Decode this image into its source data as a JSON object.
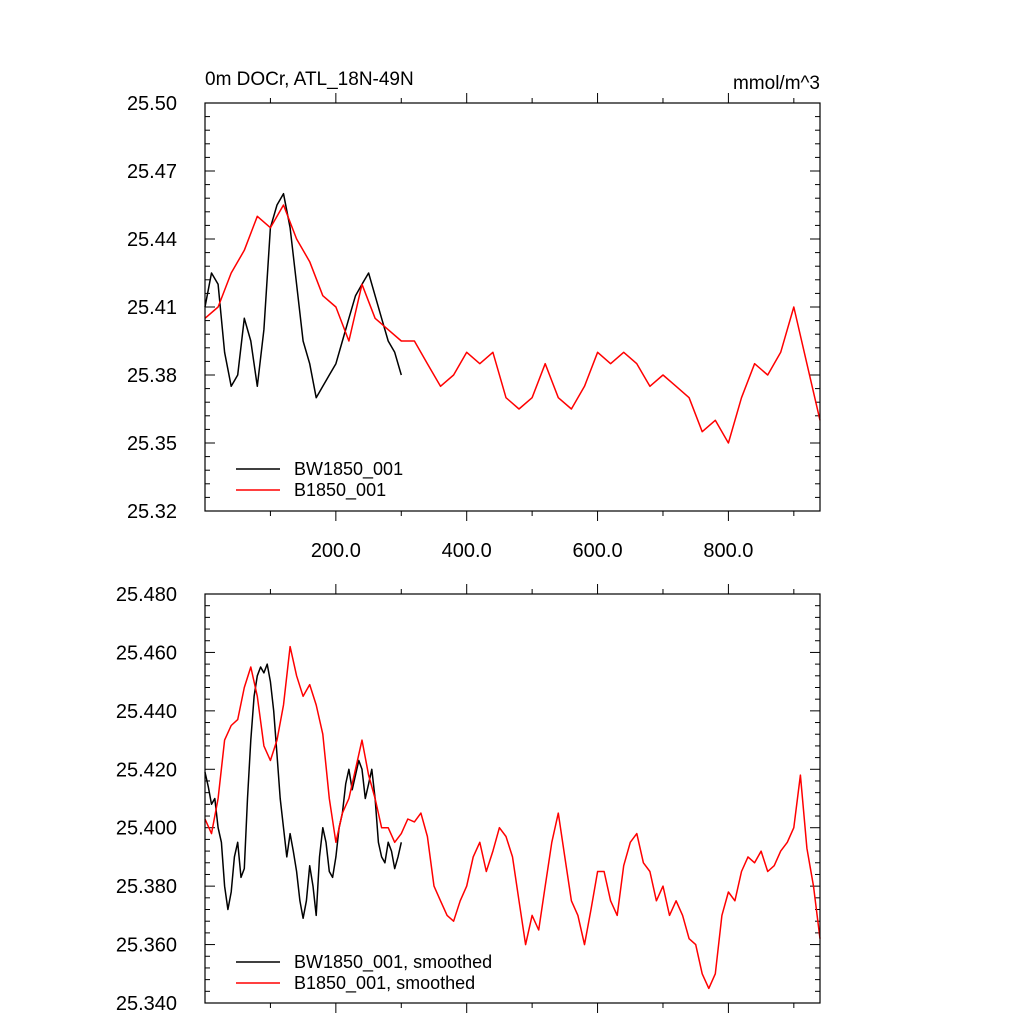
{
  "figure": {
    "background": "#ffffff"
  },
  "chart_data": [
    {
      "type": "line",
      "title": "0m DOCr, ATL_18N-49N",
      "units": "mmol/m^3",
      "xlim": [
        0,
        940
      ],
      "ylim": [
        25.32,
        25.5
      ],
      "x_tick_labels": [
        "200.0",
        "400.0",
        "600.0",
        "800.0"
      ],
      "x_ticks": [
        200,
        400,
        600,
        800
      ],
      "y_tick_labels": [
        "25.32",
        "25.35",
        "25.38",
        "25.41",
        "25.44",
        "25.47",
        "25.50"
      ],
      "y_ticks": [
        25.32,
        25.35,
        25.38,
        25.41,
        25.44,
        25.47,
        25.5
      ],
      "legend_position": "bottom-left",
      "series": [
        {
          "name": "BW1850_001",
          "color": "#000000",
          "x": [
            0,
            10,
            20,
            30,
            40,
            50,
            60,
            70,
            80,
            90,
            100,
            110,
            120,
            130,
            140,
            150,
            160,
            170,
            180,
            190,
            200,
            210,
            220,
            230,
            240,
            250,
            260,
            270,
            280,
            290,
            300
          ],
          "y": [
            25.41,
            25.425,
            25.42,
            25.39,
            25.375,
            25.38,
            25.405,
            25.395,
            25.375,
            25.4,
            25.445,
            25.455,
            25.46,
            25.445,
            25.42,
            25.395,
            25.385,
            25.37,
            25.375,
            25.38,
            25.385,
            25.395,
            25.405,
            25.415,
            25.42,
            25.425,
            25.415,
            25.405,
            25.395,
            25.39,
            25.38
          ]
        },
        {
          "name": "B1850_001",
          "color": "#ff0000",
          "x": [
            0,
            20,
            40,
            60,
            80,
            100,
            120,
            140,
            160,
            180,
            200,
            220,
            240,
            260,
            280,
            300,
            320,
            340,
            360,
            380,
            400,
            420,
            440,
            460,
            480,
            500,
            520,
            540,
            560,
            580,
            600,
            620,
            640,
            660,
            680,
            700,
            720,
            740,
            760,
            780,
            800,
            820,
            840,
            860,
            880,
            900,
            920,
            940
          ],
          "y": [
            25.405,
            25.41,
            25.425,
            25.435,
            25.45,
            25.445,
            25.455,
            25.44,
            25.43,
            25.415,
            25.41,
            25.395,
            25.42,
            25.405,
            25.4,
            25.395,
            25.395,
            25.385,
            25.375,
            25.38,
            25.39,
            25.385,
            25.39,
            25.37,
            25.365,
            25.37,
            25.385,
            25.37,
            25.365,
            25.375,
            25.39,
            25.385,
            25.39,
            25.385,
            25.375,
            25.38,
            25.375,
            25.37,
            25.355,
            25.36,
            25.35,
            25.37,
            25.385,
            25.38,
            25.39,
            25.41,
            25.385,
            25.36
          ]
        }
      ]
    },
    {
      "type": "line",
      "xlim": [
        0,
        940
      ],
      "ylim": [
        25.34,
        25.48
      ],
      "y_tick_labels": [
        "25.340",
        "25.360",
        "25.380",
        "25.400",
        "25.420",
        "25.440",
        "25.460",
        "25.480"
      ],
      "y_ticks": [
        25.34,
        25.36,
        25.38,
        25.4,
        25.42,
        25.44,
        25.46,
        25.48
      ],
      "x_ticks": [
        200,
        400,
        600,
        800
      ],
      "legend_position": "bottom-left",
      "series": [
        {
          "name": "BW1850_001, smoothed",
          "color": "#000000",
          "x": [
            0,
            5,
            10,
            15,
            20,
            25,
            30,
            35,
            40,
            45,
            50,
            55,
            60,
            65,
            70,
            75,
            80,
            85,
            90,
            95,
            100,
            105,
            110,
            115,
            120,
            125,
            130,
            135,
            140,
            145,
            150,
            155,
            160,
            165,
            170,
            175,
            180,
            185,
            190,
            195,
            200,
            205,
            210,
            215,
            220,
            225,
            230,
            235,
            240,
            245,
            250,
            255,
            260,
            265,
            270,
            275,
            280,
            285,
            290,
            295,
            300
          ],
          "y": [
            25.419,
            25.414,
            25.408,
            25.41,
            25.4,
            25.395,
            25.38,
            25.372,
            25.378,
            25.39,
            25.395,
            25.383,
            25.386,
            25.41,
            25.43,
            25.445,
            25.452,
            25.455,
            25.453,
            25.456,
            25.45,
            25.44,
            25.425,
            25.41,
            25.4,
            25.39,
            25.398,
            25.392,
            25.385,
            25.375,
            25.369,
            25.375,
            25.387,
            25.38,
            25.37,
            25.39,
            25.4,
            25.395,
            25.385,
            25.383,
            25.39,
            25.4,
            25.405,
            25.415,
            25.42,
            25.413,
            25.418,
            25.423,
            25.42,
            25.41,
            25.415,
            25.42,
            25.41,
            25.395,
            25.39,
            25.388,
            25.395,
            25.392,
            25.386,
            25.39,
            25.395
          ]
        },
        {
          "name": "B1850_001, smoothed",
          "color": "#ff0000",
          "x": [
            0,
            10,
            20,
            30,
            40,
            50,
            60,
            70,
            80,
            90,
            100,
            110,
            120,
            130,
            140,
            150,
            160,
            170,
            180,
            190,
            200,
            210,
            220,
            230,
            240,
            250,
            260,
            270,
            280,
            290,
            300,
            310,
            320,
            330,
            340,
            350,
            360,
            370,
            380,
            390,
            400,
            410,
            420,
            430,
            440,
            450,
            460,
            470,
            480,
            490,
            500,
            510,
            520,
            530,
            540,
            550,
            560,
            570,
            580,
            590,
            600,
            610,
            620,
            630,
            640,
            650,
            660,
            670,
            680,
            690,
            700,
            710,
            720,
            730,
            740,
            750,
            760,
            770,
            780,
            790,
            800,
            810,
            820,
            830,
            840,
            850,
            860,
            870,
            880,
            890,
            900,
            910,
            920,
            930,
            940
          ],
          "y": [
            25.403,
            25.398,
            25.41,
            25.43,
            25.435,
            25.437,
            25.448,
            25.455,
            25.445,
            25.428,
            25.423,
            25.43,
            25.442,
            25.462,
            25.452,
            25.445,
            25.449,
            25.442,
            25.432,
            25.41,
            25.395,
            25.405,
            25.41,
            25.42,
            25.43,
            25.418,
            25.41,
            25.4,
            25.4,
            25.395,
            25.398,
            25.403,
            25.402,
            25.405,
            25.397,
            25.38,
            25.375,
            25.37,
            25.368,
            25.375,
            25.38,
            25.39,
            25.395,
            25.385,
            25.392,
            25.4,
            25.397,
            25.39,
            25.375,
            25.36,
            25.37,
            25.365,
            25.38,
            25.395,
            25.405,
            25.39,
            25.375,
            25.37,
            25.36,
            25.372,
            25.385,
            25.385,
            25.375,
            25.37,
            25.387,
            25.395,
            25.398,
            25.388,
            25.385,
            25.375,
            25.38,
            25.37,
            25.375,
            25.37,
            25.362,
            25.36,
            25.35,
            25.345,
            25.35,
            25.37,
            25.378,
            25.375,
            25.385,
            25.39,
            25.388,
            25.392,
            25.385,
            25.387,
            25.392,
            25.395,
            25.4,
            25.418,
            25.393,
            25.38,
            25.362
          ]
        }
      ]
    }
  ]
}
